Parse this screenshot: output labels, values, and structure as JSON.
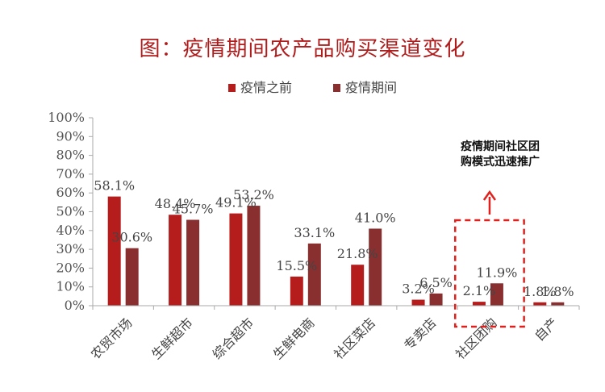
{
  "title": "图：疫情期间农产品购买渠道变化",
  "note": [
    "疫情期间社区团",
    "购模式迅速推广"
  ],
  "colors": {
    "before": "#b51d1d",
    "during": "#8a2f2f",
    "highlight": "#e0201c",
    "axis": "#aaaaaa"
  },
  "chart_data": {
    "type": "bar",
    "categories": [
      "农贸市场",
      "生鲜超市",
      "综合超市",
      "生鲜电商",
      "社区菜店",
      "专卖店",
      "社区团购",
      "自产"
    ],
    "series": [
      {
        "name": "疫情之前",
        "values": [
          58.1,
          48.4,
          49.1,
          15.5,
          21.8,
          3.2,
          2.1,
          1.8
        ],
        "labels": [
          "58.1%",
          "48.4%",
          "49.1%",
          "15.5%",
          "21.8%",
          "3.2%",
          "2.1%",
          "1.8%"
        ]
      },
      {
        "name": "疫情期间",
        "values": [
          30.6,
          45.7,
          53.2,
          33.1,
          41.0,
          6.5,
          11.9,
          1.8
        ],
        "labels": [
          "30.6%",
          "45.7%",
          "53.2%",
          "33.1%",
          "41.0%",
          "6.5%",
          "11.9%",
          "1.8%"
        ]
      }
    ],
    "ylim": [
      0,
      100
    ],
    "yticks": [
      "0%",
      "10%",
      "20%",
      "30%",
      "40%",
      "50%",
      "60%",
      "70%",
      "80%",
      "90%",
      "100%"
    ],
    "legend": "top-center",
    "grid": false,
    "highlight_category": "社区团购"
  }
}
